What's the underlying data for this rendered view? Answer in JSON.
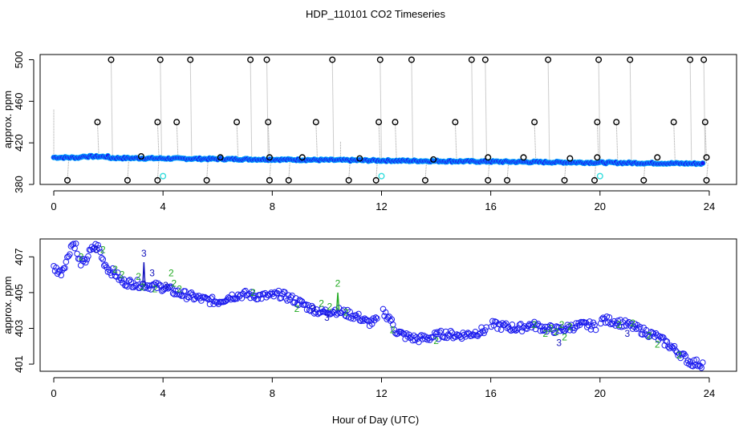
{
  "figure": {
    "title": "HDP_110101  CO2 Timeseries",
    "xlabel": "Hour of Day (UTC)"
  },
  "colors": {
    "raw_point": "#000000",
    "drop_line": "#9a9a9a",
    "mean_fill": "#1a1aee",
    "mean_ring": "#00aaff",
    "cal_point": "#33dddd",
    "flag_2": "#22aa22",
    "flag_3": "#1111bb"
  },
  "chart_data": [
    {
      "type": "scatter",
      "name": "raw",
      "title": "",
      "xlabel": "",
      "ylabel": "approx. ppm",
      "xlim": [
        -0.5,
        25
      ],
      "ylim": [
        380,
        505
      ],
      "xticks": [
        0,
        4,
        8,
        12,
        16,
        20,
        24
      ],
      "yticks": [
        380,
        420,
        460,
        500
      ],
      "mean_line": {
        "from": [
          0,
          406
        ],
        "to": [
          23.8,
          400
        ]
      },
      "spike_points": [
        [
          1.6,
          440
        ],
        [
          2.1,
          500
        ],
        [
          3.8,
          440
        ],
        [
          3.9,
          500
        ],
        [
          4.5,
          440
        ],
        [
          5.0,
          500
        ],
        [
          6.7,
          440
        ],
        [
          7.2,
          500
        ],
        [
          7.8,
          500
        ],
        [
          7.85,
          440
        ],
        [
          9.6,
          440
        ],
        [
          10.2,
          500
        ],
        [
          11.9,
          440
        ],
        [
          11.95,
          500
        ],
        [
          12.5,
          440
        ],
        [
          13.1,
          500
        ],
        [
          14.7,
          440
        ],
        [
          15.3,
          500
        ],
        [
          15.8,
          500
        ],
        [
          17.6,
          440
        ],
        [
          18.1,
          500
        ],
        [
          19.9,
          440
        ],
        [
          19.95,
          500
        ],
        [
          20.6,
          440
        ],
        [
          21.1,
          500
        ],
        [
          22.7,
          440
        ],
        [
          23.3,
          500
        ],
        [
          23.8,
          500
        ],
        [
          23.85,
          440
        ]
      ],
      "dip_points": [
        [
          0.5,
          384
        ],
        [
          2.7,
          384
        ],
        [
          3.8,
          384
        ],
        [
          5.6,
          384
        ],
        [
          7.9,
          384
        ],
        [
          8.6,
          384
        ],
        [
          10.8,
          384
        ],
        [
          11.8,
          384
        ],
        [
          13.6,
          384
        ],
        [
          15.9,
          384
        ],
        [
          16.6,
          384
        ],
        [
          18.7,
          384
        ],
        [
          19.8,
          384
        ],
        [
          21.6,
          384
        ],
        [
          23.9,
          384
        ]
      ],
      "near_points": [
        [
          3.2,
          407
        ],
        [
          6.1,
          406
        ],
        [
          7.9,
          406
        ],
        [
          9.1,
          406
        ],
        [
          11.2,
          405
        ],
        [
          13.9,
          404
        ],
        [
          15.9,
          406
        ],
        [
          17.2,
          406
        ],
        [
          18.9,
          405
        ],
        [
          19.9,
          406
        ],
        [
          22.1,
          406
        ],
        [
          23.9,
          406
        ]
      ],
      "cal_points": [
        [
          4.0,
          388
        ],
        [
          12.0,
          388
        ],
        [
          20.0,
          388
        ]
      ]
    },
    {
      "type": "scatter",
      "name": "smoothed",
      "title": "",
      "xlabel": "Hour of Day (UTC)",
      "ylabel": "approx. ppm",
      "xlim": [
        -0.5,
        25
      ],
      "ylim": [
        400.6,
        408.0
      ],
      "xticks": [
        0,
        4,
        8,
        12,
        16,
        20,
        24
      ],
      "yticks": [
        401,
        403,
        405,
        407
      ],
      "gaps": [
        [
          11.85,
          12.05
        ],
        [
          15.85,
          16.0
        ],
        [
          19.85,
          20.0
        ]
      ],
      "knots": [
        [
          0.0,
          406.4
        ],
        [
          0.25,
          406.1
        ],
        [
          0.5,
          406.9
        ],
        [
          0.65,
          407.7
        ],
        [
          0.8,
          407.7
        ],
        [
          0.9,
          406.8
        ],
        [
          1.1,
          406.6
        ],
        [
          1.3,
          407.2
        ],
        [
          1.5,
          407.6
        ],
        [
          1.65,
          407.5
        ],
        [
          1.8,
          406.8
        ],
        [
          2.0,
          406.3
        ],
        [
          2.3,
          406.0
        ],
        [
          2.5,
          405.6
        ],
        [
          3.0,
          405.5
        ],
        [
          3.5,
          405.4
        ],
        [
          4.0,
          405.3
        ],
        [
          4.5,
          405.0
        ],
        [
          5.0,
          404.8
        ],
        [
          5.5,
          404.6
        ],
        [
          6.0,
          404.5
        ],
        [
          6.5,
          404.8
        ],
        [
          7.0,
          404.9
        ],
        [
          7.5,
          404.8
        ],
        [
          7.9,
          404.8
        ],
        [
          8.3,
          404.9
        ],
        [
          8.8,
          404.6
        ],
        [
          9.3,
          404.2
        ],
        [
          9.8,
          403.9
        ],
        [
          10.3,
          404.0
        ],
        [
          10.8,
          403.8
        ],
        [
          11.2,
          403.6
        ],
        [
          11.5,
          403.3
        ],
        [
          11.8,
          403.4
        ],
        [
          12.05,
          403.9
        ],
        [
          12.3,
          403.6
        ],
        [
          12.5,
          402.9
        ],
        [
          12.8,
          402.6
        ],
        [
          13.3,
          402.4
        ],
        [
          13.8,
          402.5
        ],
        [
          14.3,
          402.7
        ],
        [
          14.8,
          402.6
        ],
        [
          15.3,
          402.7
        ],
        [
          15.8,
          402.9
        ],
        [
          16.0,
          403.2
        ],
        [
          16.5,
          403.1
        ],
        [
          17.0,
          403.0
        ],
        [
          17.5,
          403.2
        ],
        [
          18.0,
          403.0
        ],
        [
          18.5,
          402.9
        ],
        [
          19.0,
          403.1
        ],
        [
          19.5,
          403.2
        ],
        [
          19.85,
          403.1
        ],
        [
          20.0,
          403.5
        ],
        [
          20.5,
          403.4
        ],
        [
          21.0,
          403.2
        ],
        [
          21.5,
          402.9
        ],
        [
          22.0,
          402.6
        ],
        [
          22.5,
          402.1
        ],
        [
          23.0,
          401.5
        ],
        [
          23.3,
          401.1
        ],
        [
          23.8,
          401.0
        ]
      ],
      "flag_labels": [
        {
          "x": 1.0,
          "y": 407.0,
          "label": "2",
          "series": "flag_2"
        },
        {
          "x": 1.55,
          "y": 407.4,
          "label": "3",
          "series": "flag_3"
        },
        {
          "x": 1.8,
          "y": 407.4,
          "label": "2",
          "series": "flag_2"
        },
        {
          "x": 2.25,
          "y": 406.3,
          "label": "2",
          "series": "flag_2"
        },
        {
          "x": 2.5,
          "y": 406.0,
          "label": "2",
          "series": "flag_2"
        },
        {
          "x": 3.3,
          "y": 407.2,
          "label": "3",
          "series": "flag_3"
        },
        {
          "x": 3.6,
          "y": 406.1,
          "label": "3",
          "series": "flag_3"
        },
        {
          "x": 3.1,
          "y": 405.9,
          "label": "2",
          "series": "flag_2"
        },
        {
          "x": 3.25,
          "y": 405.3,
          "label": "2",
          "series": "flag_2"
        },
        {
          "x": 3.7,
          "y": 405.2,
          "label": "2",
          "series": "flag_2"
        },
        {
          "x": 4.1,
          "y": 405.4,
          "label": "3",
          "series": "flag_3"
        },
        {
          "x": 4.3,
          "y": 406.1,
          "label": "2",
          "series": "flag_2"
        },
        {
          "x": 4.4,
          "y": 405.5,
          "label": "2",
          "series": "flag_2"
        },
        {
          "x": 4.6,
          "y": 405.2,
          "label": "2",
          "series": "flag_2"
        },
        {
          "x": 7.3,
          "y": 405.0,
          "label": "2",
          "series": "flag_2"
        },
        {
          "x": 8.9,
          "y": 404.1,
          "label": "2",
          "series": "flag_2"
        },
        {
          "x": 9.8,
          "y": 404.4,
          "label": "2",
          "series": "flag_2"
        },
        {
          "x": 10.1,
          "y": 404.2,
          "label": "2",
          "series": "flag_2"
        },
        {
          "x": 10.4,
          "y": 405.5,
          "label": "2",
          "series": "flag_2"
        },
        {
          "x": 10.7,
          "y": 403.9,
          "label": "2",
          "series": "flag_2"
        },
        {
          "x": 9.5,
          "y": 404.1,
          "label": "3",
          "series": "flag_3"
        },
        {
          "x": 10.0,
          "y": 403.6,
          "label": "3",
          "series": "flag_3"
        },
        {
          "x": 12.4,
          "y": 402.9,
          "label": "2",
          "series": "flag_2"
        },
        {
          "x": 14.0,
          "y": 402.3,
          "label": "2",
          "series": "flag_2"
        },
        {
          "x": 17.6,
          "y": 403.2,
          "label": "2",
          "series": "flag_2"
        },
        {
          "x": 18.0,
          "y": 402.7,
          "label": "2",
          "series": "flag_2"
        },
        {
          "x": 18.2,
          "y": 403.0,
          "label": "2",
          "series": "flag_2"
        },
        {
          "x": 18.4,
          "y": 402.8,
          "label": "2",
          "series": "flag_2"
        },
        {
          "x": 18.6,
          "y": 403.2,
          "label": "2",
          "series": "flag_2"
        },
        {
          "x": 18.7,
          "y": 402.5,
          "label": "2",
          "series": "flag_2"
        },
        {
          "x": 18.5,
          "y": 402.2,
          "label": "3",
          "series": "flag_3"
        },
        {
          "x": 18.9,
          "y": 403.1,
          "label": "2",
          "series": "flag_2"
        },
        {
          "x": 20.7,
          "y": 403.2,
          "label": "2",
          "series": "flag_2"
        },
        {
          "x": 21.2,
          "y": 403.3,
          "label": "2",
          "series": "flag_2"
        },
        {
          "x": 21.8,
          "y": 402.6,
          "label": "2",
          "series": "flag_2"
        },
        {
          "x": 22.1,
          "y": 402.1,
          "label": "2",
          "series": "flag_2"
        },
        {
          "x": 21.0,
          "y": 402.7,
          "label": "3",
          "series": "flag_3"
        },
        {
          "x": 22.9,
          "y": 401.5,
          "label": "2",
          "series": "flag_2"
        }
      ],
      "flag_spikes": [
        {
          "x": 3.3,
          "from": 405.4,
          "to": 406.7,
          "series": "flag_3"
        },
        {
          "x": 10.4,
          "from": 404.0,
          "to": 405.0,
          "series": "flag_2"
        }
      ]
    }
  ]
}
